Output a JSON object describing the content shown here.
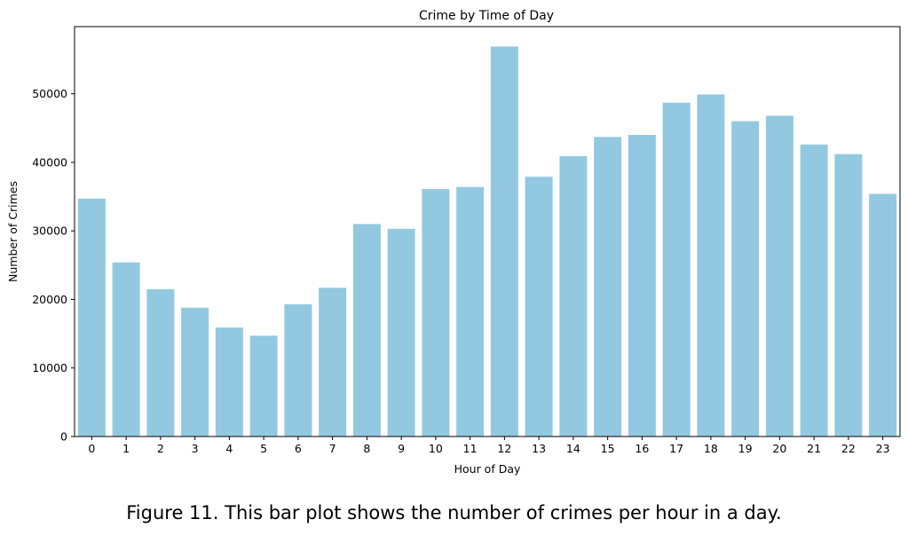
{
  "caption": "Figure 11. This bar plot shows the number of crimes per hour in a day.",
  "chart_data": {
    "type": "bar",
    "title": "Crime by Time of Day",
    "xlabel": "Hour of Day",
    "ylabel": "Number of Crimes",
    "categories": [
      "0",
      "1",
      "2",
      "3",
      "4",
      "5",
      "6",
      "7",
      "8",
      "9",
      "10",
      "11",
      "12",
      "13",
      "14",
      "15",
      "16",
      "17",
      "18",
      "19",
      "20",
      "21",
      "22",
      "23"
    ],
    "values": [
      34700,
      25400,
      21500,
      18800,
      15900,
      14700,
      19300,
      21700,
      31000,
      30300,
      36100,
      36400,
      56900,
      37900,
      40900,
      43700,
      44000,
      48700,
      49900,
      46000,
      46800,
      42600,
      41200,
      35400
    ],
    "ylim": [
      0,
      59800
    ],
    "yticks": [
      0,
      10000,
      20000,
      30000,
      40000,
      50000
    ],
    "ytick_labels": [
      "0",
      "10000",
      "20000",
      "30000",
      "40000",
      "50000"
    ],
    "bar_color": "#92c9e0",
    "grid": false
  }
}
